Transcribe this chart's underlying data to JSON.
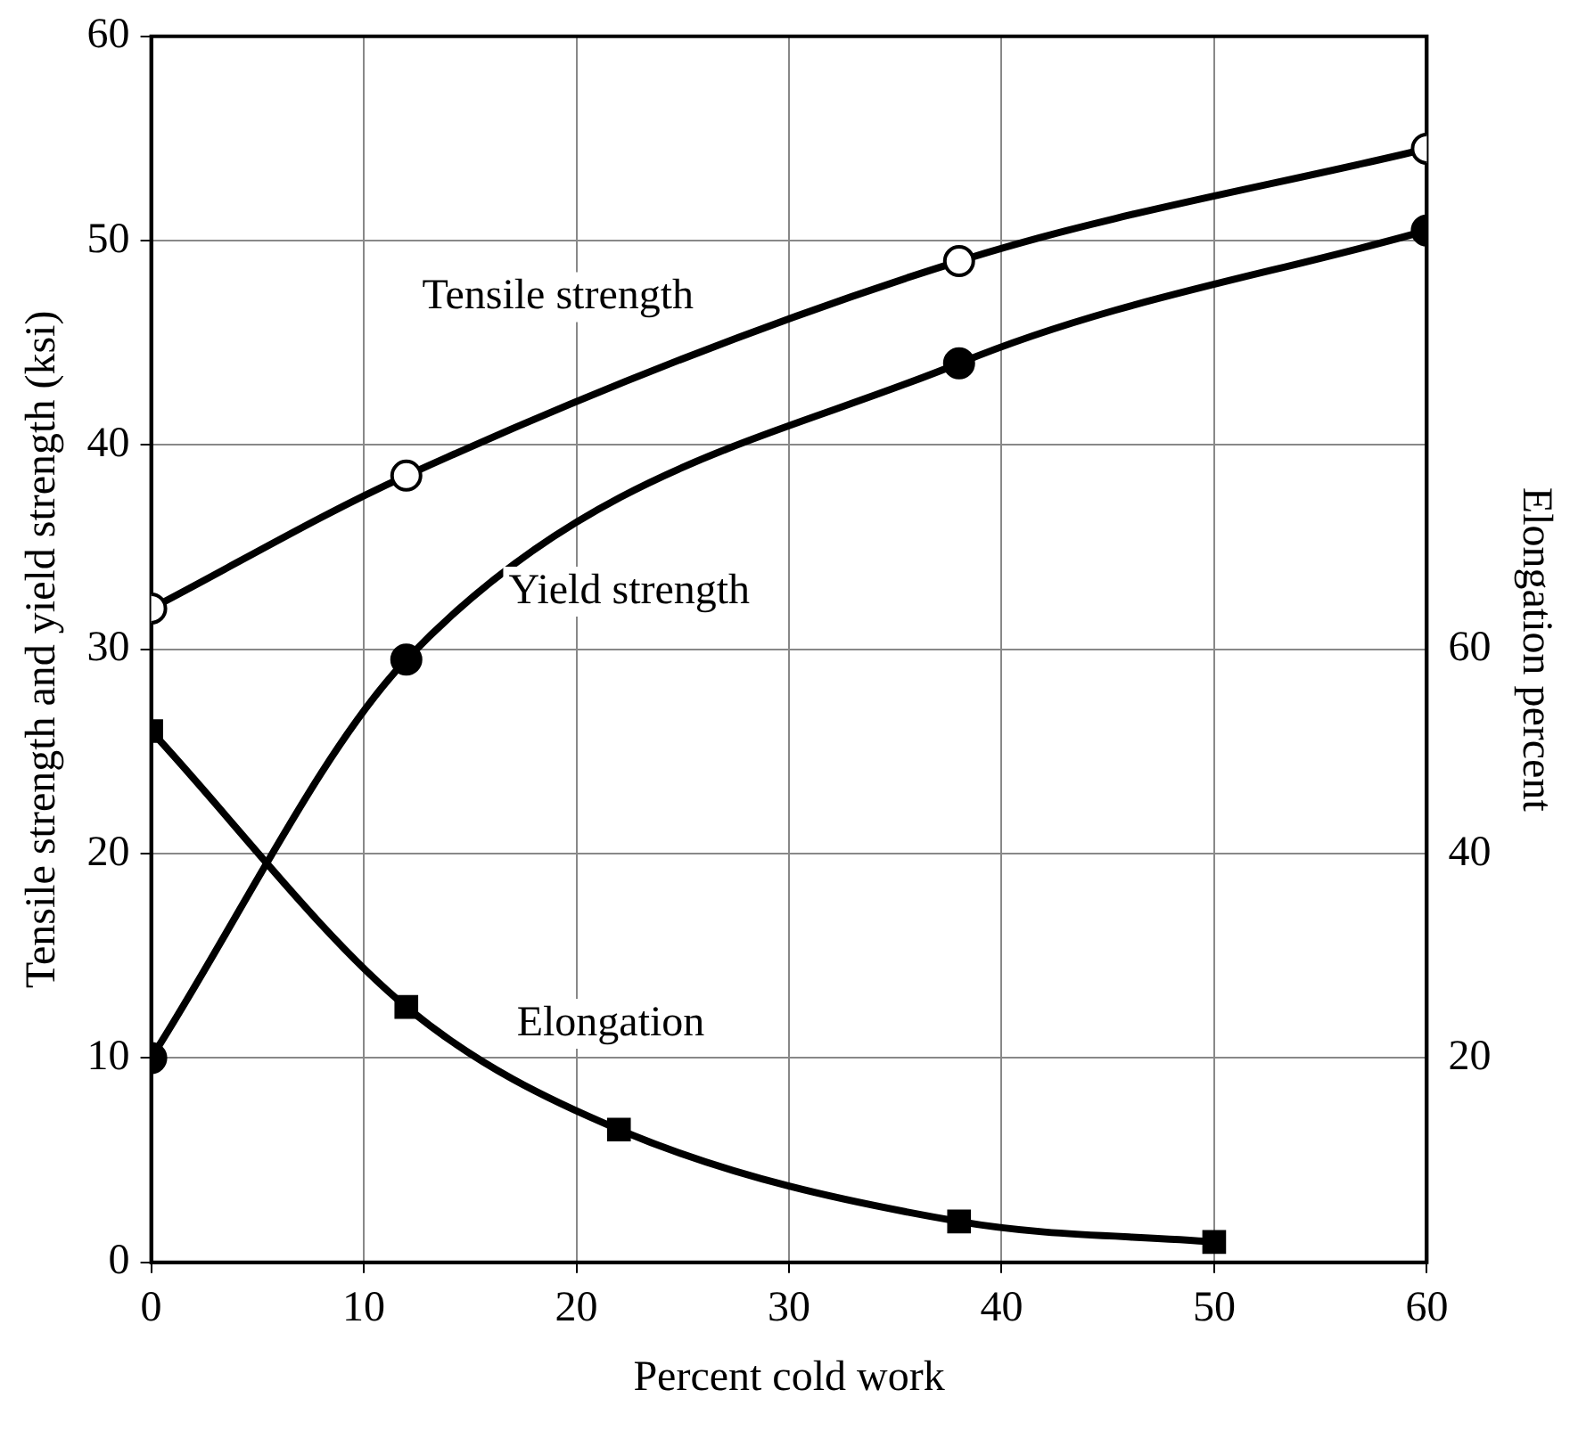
{
  "chart_data": {
    "type": "line",
    "xlabel": "Percent cold work",
    "ylabel": "Tensile strength and yield strength (ksi)",
    "y2label": "Elongation percent",
    "xlim": [
      0,
      60
    ],
    "xticks": [
      0,
      10,
      20,
      30,
      40,
      50,
      60
    ],
    "ylim": [
      0,
      60
    ],
    "yticks": [
      0,
      10,
      20,
      30,
      40,
      50,
      60
    ],
    "y2lim": [
      0,
      120
    ],
    "y2ticks": [
      20,
      40,
      60
    ],
    "grid": true,
    "legend": false,
    "series": [
      {
        "name": "Tensile strength",
        "color": "#000000",
        "marker": "circle",
        "x": [
          0,
          12,
          38,
          60
        ],
        "values": [
          32,
          38.5,
          49,
          54.5
        ]
      },
      {
        "name": "Yield strength",
        "color": "#000000",
        "marker": "circle",
        "x": [
          0,
          12,
          38,
          60
        ],
        "values": [
          10,
          29.5,
          44,
          50.5
        ]
      },
      {
        "name": "Elongation",
        "color": "#000000",
        "marker": "square",
        "axis": "y2",
        "x": [
          0,
          12,
          22,
          38,
          50
        ],
        "values": [
          52,
          25,
          13,
          4,
          2
        ]
      }
    ]
  }
}
